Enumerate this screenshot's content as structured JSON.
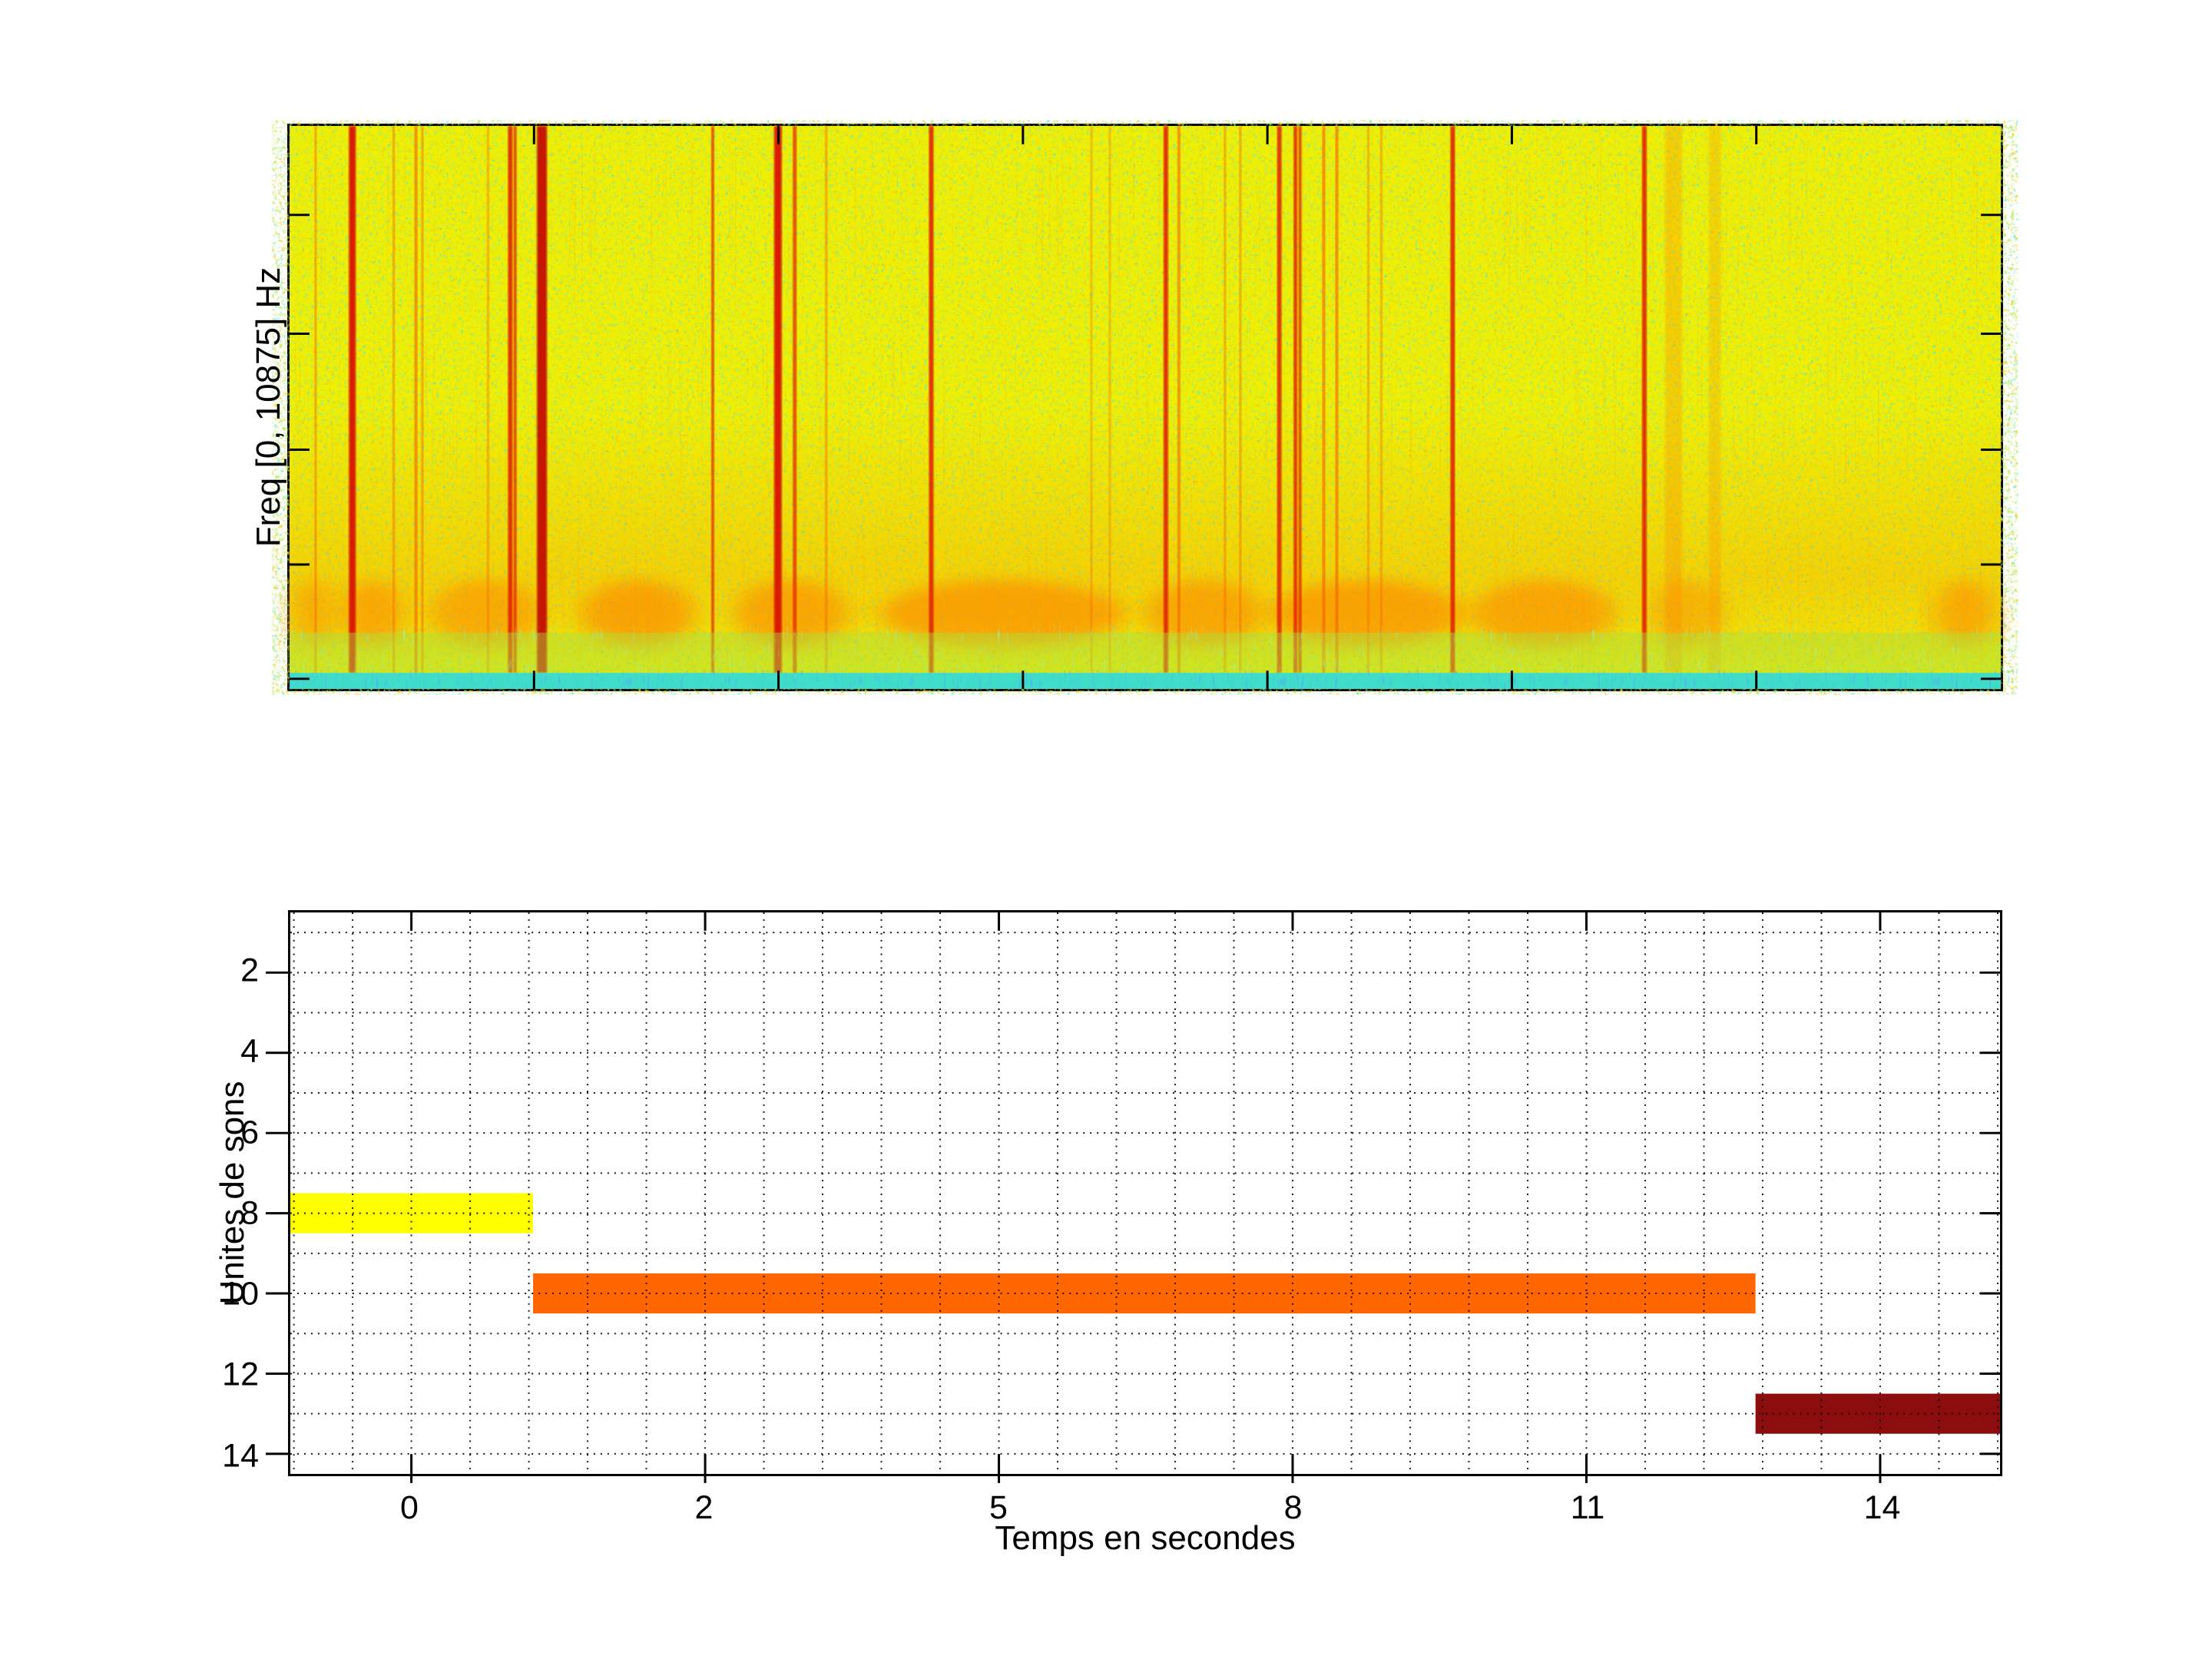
{
  "figure": {
    "background": "#ffffff",
    "description": "Two stacked MATLAB-style plots: a jet-colormap spectrogram on top and a horizontal colored-segment timeline of sound units below"
  },
  "colors": {
    "axis": "#000000",
    "spectrogram_base": "#f1ef00",
    "spectrogram_green_speck": "#73d919",
    "spectrogram_cyan_speck": "#0dd6c7",
    "spectrogram_orange_speck": "#ff9e00",
    "spectrogram_streak_strong": "#e02500",
    "spectrogram_streak_soft": "#f56300",
    "spectrogram_smudge": "#ff8800",
    "spectrogram_bottom_band": "#3fdcc9",
    "spectrogram_bottom_dash": "#1569f0",
    "bar_yellow": "#ffff00",
    "bar_orange": "#ff6600",
    "bar_darkred": "#8b0d0d"
  },
  "chart_data": [
    {
      "type": "heatmap",
      "subtype": "spectrogram",
      "title": "",
      "xlabel": "",
      "ylabel": "Freq [0, 10875] Hz",
      "freq_range_hz": [
        0,
        10875
      ],
      "colormap": "jet",
      "background_level": "high (yellow) with green/cyan speckle noise",
      "low_freq_band": "orange energy smudges around 80% height; cyan low-amplitude band at bottom ~4% with blue dashes",
      "events_note": "vertical red transient streaks; x encoded as fraction of plot width (full width spans approx -0.8 s to 15.2 s)",
      "events": [
        {
          "xf": 0.0152,
          "w": 3,
          "o": 0.6
        },
        {
          "xf": 0.0367,
          "w": 9,
          "o": 1,
          "c": "#d81f00"
        },
        {
          "xf": 0.0609,
          "w": 3,
          "o": 0.6
        },
        {
          "xf": 0.0739,
          "w": 4,
          "o": 0.75
        },
        {
          "xf": 0.0776,
          "w": 3,
          "o": 0.6
        },
        {
          "xf": 0.116,
          "w": 3,
          "o": 0.5
        },
        {
          "xf": 0.129,
          "w": 6,
          "o": 0.95
        },
        {
          "xf": 0.1318,
          "w": 4,
          "o": 0.85
        },
        {
          "xf": 0.1475,
          "w": 13,
          "o": 1,
          "c": "#c41800"
        },
        {
          "xf": 0.2473,
          "w": 4,
          "o": 0.8
        },
        {
          "xf": 0.2854,
          "w": 10,
          "o": 1,
          "c": "#d81f00"
        },
        {
          "xf": 0.2952,
          "w": 5,
          "o": 0.8
        },
        {
          "xf": 0.3136,
          "w": 3,
          "o": 0.6
        },
        {
          "xf": 0.375,
          "w": 6,
          "o": 0.95
        },
        {
          "xf": 0.4686,
          "w": 3,
          "o": 0.4
        },
        {
          "xf": 0.4794,
          "w": 3,
          "o": 0.4
        },
        {
          "xf": 0.5121,
          "w": 6,
          "o": 0.95
        },
        {
          "xf": 0.5197,
          "w": 4,
          "o": 0.7
        },
        {
          "xf": 0.5466,
          "w": 3,
          "o": 0.55
        },
        {
          "xf": 0.5556,
          "w": 3,
          "o": 0.55
        },
        {
          "xf": 0.5784,
          "w": 6,
          "o": 0.9
        },
        {
          "xf": 0.5878,
          "w": 5,
          "o": 0.9
        },
        {
          "xf": 0.5905,
          "w": 4,
          "o": 0.85
        },
        {
          "xf": 0.6044,
          "w": 4,
          "o": 0.75
        },
        {
          "xf": 0.612,
          "w": 4,
          "o": 0.75
        },
        {
          "xf": 0.6304,
          "w": 3,
          "o": 0.5
        },
        {
          "xf": 0.638,
          "w": 3,
          "o": 0.5
        },
        {
          "xf": 0.6797,
          "w": 6,
          "o": 0.95
        },
        {
          "xf": 0.7917,
          "w": 6,
          "o": 0.95
        },
        {
          "xf": 0.8088,
          "w": 22,
          "o": 0.3,
          "c": "#ff8800"
        },
        {
          "xf": 0.8329,
          "w": 16,
          "o": 0.25,
          "c": "#ff8800"
        }
      ],
      "smudges": [
        {
          "x0": 0.001,
          "x1": 0.027,
          "o": 0.5
        },
        {
          "x0": 0.031,
          "x1": 0.067,
          "o": 0.6
        },
        {
          "x0": 0.081,
          "x1": 0.148,
          "o": 0.55
        },
        {
          "x0": 0.17,
          "x1": 0.237,
          "o": 0.65
        },
        {
          "x0": 0.26,
          "x1": 0.327,
          "o": 0.6
        },
        {
          "x0": 0.345,
          "x1": 0.488,
          "o": 0.65
        },
        {
          "x0": 0.5,
          "x1": 0.569,
          "o": 0.6
        },
        {
          "x0": 0.573,
          "x1": 0.686,
          "o": 0.65
        },
        {
          "x0": 0.69,
          "x1": 0.775,
          "o": 0.6
        },
        {
          "x0": 0.795,
          "x1": 0.838,
          "o": 0.45
        },
        {
          "x0": 0.961,
          "x1": 0.997,
          "o": 0.55
        }
      ]
    },
    {
      "type": "bar",
      "orientation": "horizontal-segments",
      "title": "",
      "xlabel": "Temps en secondes",
      "ylabel": "Unites de sons",
      "x_ticklabels": [
        "0",
        "2",
        "5",
        "8",
        "11",
        "14"
      ],
      "y_ticklabels": [
        "2",
        "4",
        "6",
        "8",
        "10",
        "12",
        "14"
      ],
      "ylim": [
        0.5,
        14.5
      ],
      "y_axis_reversed": true,
      "grid": "dotted, minor subdivisions (5 per major interval on x, 2 per major on y)",
      "xlim_seconds_approx": [
        -0.8,
        15.2
      ],
      "bars": [
        {
          "unit": 8,
          "color": "#ffff00",
          "x0f": 0.0,
          "x1f": 0.142,
          "start_s": -0.8,
          "end_s": 0.83
        },
        {
          "unit": 10,
          "color": "#ff6600",
          "x0f": 0.142,
          "x1f": 0.857,
          "start_s": 0.83,
          "end_s": 12.73
        },
        {
          "unit": 13,
          "color": "#8b0d0d",
          "x0f": 0.857,
          "x1f": 1.0,
          "start_s": 12.73,
          "end_s": 15.2
        }
      ]
    }
  ]
}
